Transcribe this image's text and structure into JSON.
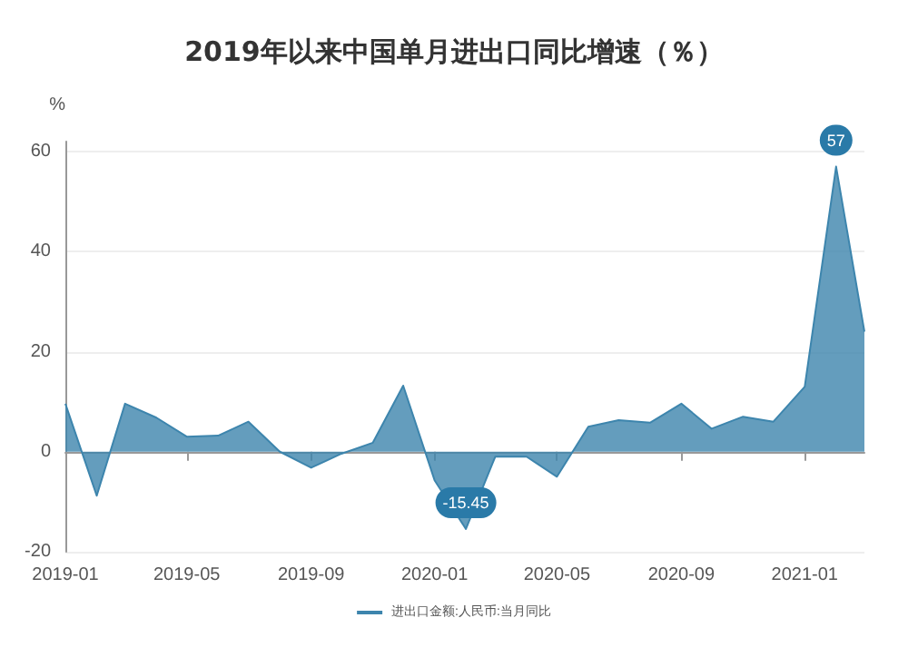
{
  "chart_data": {
    "type": "area",
    "title": "2019年以来中国单月进出口同比增速（％）",
    "ylabel": "%",
    "x": [
      "2019-01",
      "2019-02",
      "2019-03",
      "2019-04",
      "2019-05",
      "2019-06",
      "2019-07",
      "2019-08",
      "2019-09",
      "2019-10",
      "2019-11",
      "2019-12",
      "2020-01",
      "2020-02",
      "2020-03",
      "2020-04",
      "2020-05",
      "2020-06",
      "2020-07",
      "2020-08",
      "2020-09",
      "2020-10",
      "2020-11",
      "2020-12",
      "2021-01",
      "2021-02",
      "2021-03"
    ],
    "series": [
      {
        "name": "进出口金额:人民币:当月同比",
        "color": "#3d85ad",
        "values": [
          9.6,
          -8.8,
          9.6,
          6.8,
          3,
          3.2,
          6,
          0,
          -3.2,
          -0.4,
          1.8,
          13.2,
          -5.7,
          -15.45,
          -1,
          -1,
          -5,
          5,
          6.3,
          5.8,
          9.6,
          4.6,
          7,
          6,
          13,
          57,
          24
        ],
        "value_labels": [
          null,
          null,
          null,
          null,
          null,
          null,
          null,
          null,
          null,
          null,
          null,
          null,
          null,
          "-15.45",
          null,
          null,
          null,
          null,
          null,
          null,
          null,
          null,
          null,
          null,
          null,
          "57",
          null
        ]
      }
    ],
    "xlim": [
      "2019-01",
      "2021-03"
    ],
    "xticks": [
      "2019-01",
      "2019-05",
      "2019-09",
      "2020-01",
      "2020-05",
      "2020-09",
      "2021-01"
    ],
    "ylim": [
      -20,
      62
    ],
    "yticks": [
      -20,
      0,
      20,
      40,
      60
    ],
    "grid": "y",
    "legend": "bottom",
    "marker": "none"
  }
}
